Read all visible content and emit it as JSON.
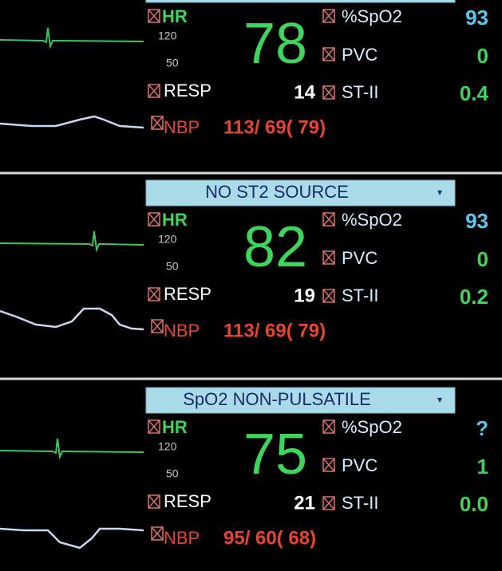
{
  "panels": [
    {
      "hr_label": "HR",
      "hr_high": "120",
      "hr_low": "50",
      "hr_value": "78",
      "resp_label": "RESP",
      "resp_value": "14",
      "nbp_label": "NBP",
      "nbp_value": "113/ 69( 79)",
      "spo2_label": "%SpO2",
      "spo2_value": "93",
      "pvc_label": "PVC",
      "pvc_value": "0",
      "st_label": "ST-II",
      "st_value": "0.4"
    },
    {
      "banner": "NO ST2 SOURCE",
      "hr_label": "HR",
      "hr_high": "120",
      "hr_low": "50",
      "hr_value": "82",
      "resp_label": "RESP",
      "resp_value": "19",
      "nbp_label": "NBP",
      "nbp_value": "113/ 69( 79)",
      "spo2_label": "%SpO2",
      "spo2_value": "93",
      "pvc_label": "PVC",
      "pvc_value": "0",
      "st_label": "ST-II",
      "st_value": "0.2"
    },
    {
      "banner": "SpO2 NON-PULSATILE",
      "hr_label": "HR",
      "hr_high": "120",
      "hr_low": "50",
      "hr_value": "75",
      "resp_label": "RESP",
      "resp_value": "21",
      "nbp_label": "NBP",
      "nbp_value": "95/ 60( 68)",
      "spo2_label": "%SpO2",
      "spo2_value": "?",
      "pvc_label": "PVC",
      "pvc_value": "1",
      "st_label": "ST-II",
      "st_value": "0.0"
    }
  ]
}
